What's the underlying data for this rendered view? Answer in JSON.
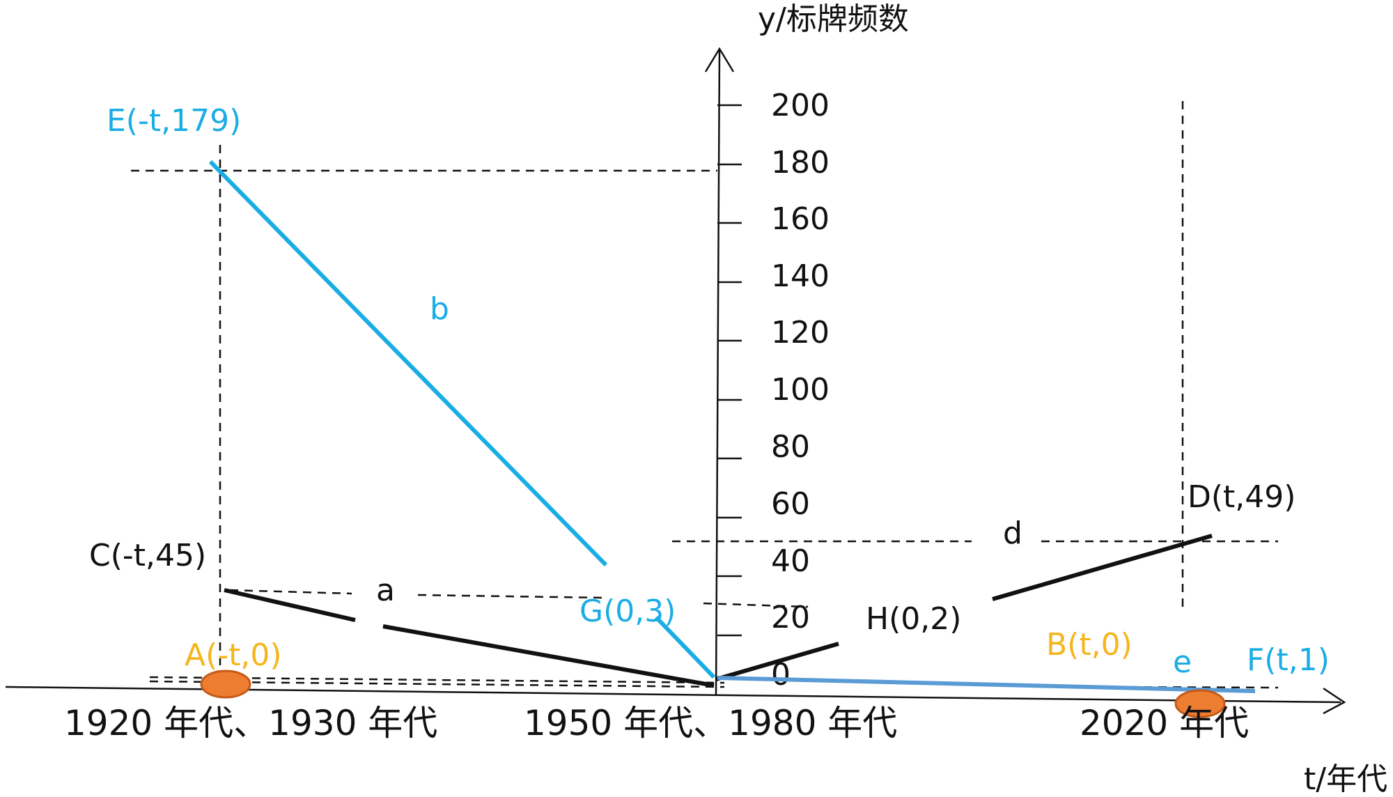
{
  "y_axis": {
    "title": "y/标牌频数",
    "ticks": [
      "0",
      "20",
      "40",
      "60",
      "80",
      "100",
      "120",
      "140",
      "160",
      "180",
      "200"
    ]
  },
  "x_axis": {
    "title": "t/年代",
    "categories": [
      "1920 年代、1930 年代",
      "1950 年代、1980 年代",
      "2020 年代"
    ]
  },
  "points": {
    "A": {
      "label": "A(-t,0)",
      "t": "-t",
      "y": 0,
      "color": "#F5B51C"
    },
    "B": {
      "label": "B(t,0)",
      "t": "t",
      "y": 0,
      "color": "#F5B51C"
    },
    "C": {
      "label": "C(-t,45)",
      "t": "-t",
      "y": 45,
      "color": "#111111"
    },
    "D": {
      "label": "D(t,49)",
      "t": "t",
      "y": 49,
      "color": "#111111"
    },
    "E": {
      "label": "E(-t,179)",
      "t": "-t",
      "y": 179,
      "color": "#1AADE4"
    },
    "F": {
      "label": "F(t,1)",
      "t": "t",
      "y": 1,
      "color": "#1AADE4"
    },
    "G": {
      "label": "G(0,3)",
      "t": "0",
      "y": 3,
      "color": "#1AADE4"
    },
    "H": {
      "label": "H(0,2)",
      "t": "0",
      "y": 2,
      "color": "#111111"
    }
  },
  "lines": {
    "a": {
      "label": "a",
      "color": "#111111"
    },
    "b": {
      "label": "b",
      "color": "#1AADE4"
    },
    "d": {
      "label": "d",
      "color": "#111111"
    },
    "e": {
      "label": "e",
      "color": "#1AADE4"
    }
  },
  "colors": {
    "blue": "#1AADE4",
    "light_blue": "#5B9BD5",
    "black": "#111111",
    "orange_fill": "#ED7D31",
    "orange_stroke": "#C65A16",
    "yellow_label": "#F5B51C"
  }
}
